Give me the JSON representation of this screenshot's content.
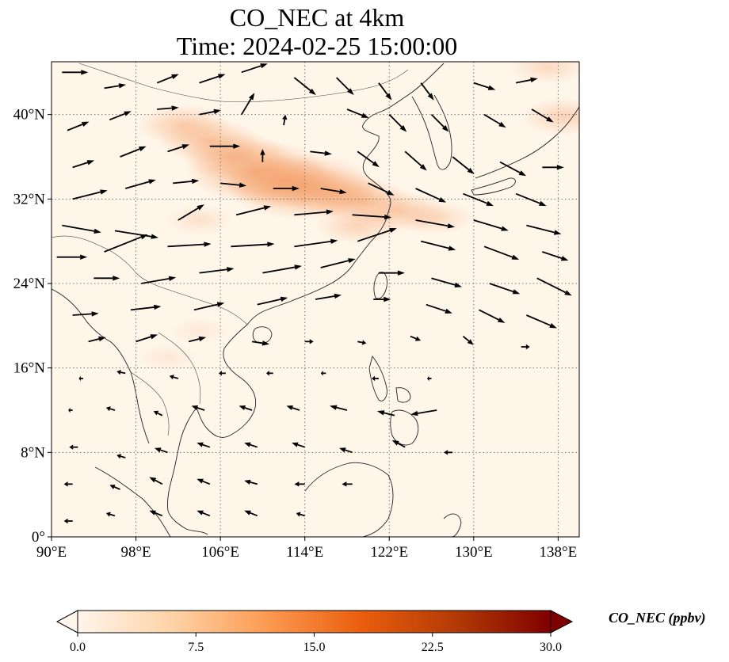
{
  "title": {
    "line1": "CO_NEC at 4km",
    "line2": "Time: 2024-02-25 15:00:00"
  },
  "map": {
    "lon_range": [
      90,
      140
    ],
    "lat_range": [
      0,
      45
    ],
    "lon_ticks": [
      {
        "value": 90,
        "label": "90°E"
      },
      {
        "value": 98,
        "label": "98°E"
      },
      {
        "value": 106,
        "label": "106°E"
      },
      {
        "value": 114,
        "label": "114°E"
      },
      {
        "value": 122,
        "label": "122°E"
      },
      {
        "value": 130,
        "label": "130°E"
      },
      {
        "value": 138,
        "label": "138°E"
      }
    ],
    "lat_ticks": [
      {
        "value": 0,
        "label": "0°"
      },
      {
        "value": 8,
        "label": "8°N"
      },
      {
        "value": 16,
        "label": "16°N"
      },
      {
        "value": 24,
        "label": "24°N"
      },
      {
        "value": 32,
        "label": "32°N"
      },
      {
        "value": 40,
        "label": "40°N"
      }
    ],
    "gridlines": true,
    "plume_color": "#f4a06a",
    "background_color": "#fff6ea",
    "plume_points": [
      {
        "lon": 102.5,
        "lat": 39.0,
        "ppbv": 6
      },
      {
        "lon": 105.0,
        "lat": 37.5,
        "ppbv": 7
      },
      {
        "lon": 107.5,
        "lat": 36.0,
        "ppbv": 8
      },
      {
        "lon": 109.5,
        "lat": 34.6,
        "ppbv": 12
      },
      {
        "lon": 112.0,
        "lat": 33.6,
        "ppbv": 9
      },
      {
        "lon": 113.7,
        "lat": 33.2,
        "ppbv": 13
      },
      {
        "lon": 116.5,
        "lat": 32.6,
        "ppbv": 8
      },
      {
        "lon": 119.5,
        "lat": 31.8,
        "ppbv": 7
      },
      {
        "lon": 123.0,
        "lat": 30.8,
        "ppbv": 6
      },
      {
        "lon": 126.5,
        "lat": 30.2,
        "ppbv": 4
      },
      {
        "lon": 119.0,
        "lat": 29.5,
        "ppbv": 5
      },
      {
        "lon": 104.0,
        "lat": 30.0,
        "ppbv": 3
      },
      {
        "lon": 138.5,
        "lat": 39.8,
        "ppbv": 5
      },
      {
        "lon": 137.0,
        "lat": 44.5,
        "ppbv": 4
      },
      {
        "lon": 104.0,
        "lat": 19.5,
        "ppbv": 2
      },
      {
        "lon": 101.0,
        "lat": 17.0,
        "ppbv": 2
      }
    ],
    "wind_vectors": [
      {
        "lon": 91.0,
        "lat": 44.0,
        "u": 3.0,
        "v": 0.0
      },
      {
        "lon": 95.0,
        "lat": 42.5,
        "u": 2.5,
        "v": 0.4
      },
      {
        "lon": 100.0,
        "lat": 43.0,
        "u": 2.5,
        "v": 1.0
      },
      {
        "lon": 104.0,
        "lat": 43.0,
        "u": 3.0,
        "v": 1.0
      },
      {
        "lon": 108.0,
        "lat": 44.0,
        "u": 3.0,
        "v": 1.0
      },
      {
        "lon": 113.0,
        "lat": 43.5,
        "u": 2.5,
        "v": -2.0
      },
      {
        "lon": 117.0,
        "lat": 43.5,
        "u": 2.0,
        "v": -2.0
      },
      {
        "lon": 121.0,
        "lat": 43.0,
        "u": 1.5,
        "v": -2.0
      },
      {
        "lon": 125.0,
        "lat": 43.0,
        "u": 1.5,
        "v": -2.0
      },
      {
        "lon": 130.0,
        "lat": 43.0,
        "u": 2.5,
        "v": -0.8
      },
      {
        "lon": 134.0,
        "lat": 43.0,
        "u": 2.5,
        "v": 0.5
      },
      {
        "lon": 91.5,
        "lat": 38.5,
        "u": 2.5,
        "v": 1.0
      },
      {
        "lon": 95.5,
        "lat": 39.5,
        "u": 2.5,
        "v": 1.0
      },
      {
        "lon": 100.0,
        "lat": 40.5,
        "u": 2.5,
        "v": 0.2
      },
      {
        "lon": 104.0,
        "lat": 40.0,
        "u": 2.5,
        "v": 0.5
      },
      {
        "lon": 108.0,
        "lat": 40.0,
        "u": 1.5,
        "v": 2.5
      },
      {
        "lon": 112.0,
        "lat": 39.0,
        "u": 0.2,
        "v": 1.2
      },
      {
        "lon": 118.0,
        "lat": 40.5,
        "u": 2.5,
        "v": -1.0
      },
      {
        "lon": 122.0,
        "lat": 40.0,
        "u": 2.0,
        "v": -2.0
      },
      {
        "lon": 126.0,
        "lat": 40.0,
        "u": 2.0,
        "v": -2.0
      },
      {
        "lon": 131.0,
        "lat": 40.0,
        "u": 2.5,
        "v": -1.5
      },
      {
        "lon": 135.5,
        "lat": 40.5,
        "u": 2.5,
        "v": -1.5
      },
      {
        "lon": 92.0,
        "lat": 35.0,
        "u": 2.5,
        "v": 0.8
      },
      {
        "lon": 96.5,
        "lat": 36.0,
        "u": 3.0,
        "v": 1.2
      },
      {
        "lon": 101.0,
        "lat": 36.5,
        "u": 2.5,
        "v": 0.8
      },
      {
        "lon": 105.0,
        "lat": 37.0,
        "u": 3.5,
        "v": 0.0
      },
      {
        "lon": 110.0,
        "lat": 35.5,
        "u": 0.0,
        "v": 1.5
      },
      {
        "lon": 114.5,
        "lat": 36.5,
        "u": 2.5,
        "v": -0.3
      },
      {
        "lon": 119.0,
        "lat": 36.5,
        "u": 2.5,
        "v": -1.8
      },
      {
        "lon": 123.5,
        "lat": 36.5,
        "u": 2.5,
        "v": -2.2
      },
      {
        "lon": 128.0,
        "lat": 36.0,
        "u": 2.5,
        "v": -2.0
      },
      {
        "lon": 132.5,
        "lat": 35.5,
        "u": 3.0,
        "v": -1.6
      },
      {
        "lon": 136.5,
        "lat": 35.0,
        "u": 2.5,
        "v": 0.0
      },
      {
        "lon": 92.0,
        "lat": 32.0,
        "u": 4.0,
        "v": 1.0
      },
      {
        "lon": 97.0,
        "lat": 33.0,
        "u": 3.5,
        "v": 1.0
      },
      {
        "lon": 101.5,
        "lat": 33.5,
        "u": 3.0,
        "v": 0.3
      },
      {
        "lon": 106.0,
        "lat": 33.5,
        "u": 3.0,
        "v": -0.3
      },
      {
        "lon": 111.0,
        "lat": 33.0,
        "u": 3.0,
        "v": 0.0
      },
      {
        "lon": 115.5,
        "lat": 33.0,
        "u": 3.0,
        "v": -0.5
      },
      {
        "lon": 120.0,
        "lat": 33.5,
        "u": 3.0,
        "v": -1.4
      },
      {
        "lon": 124.5,
        "lat": 33.0,
        "u": 3.5,
        "v": -1.6
      },
      {
        "lon": 129.0,
        "lat": 32.5,
        "u": 3.5,
        "v": -1.4
      },
      {
        "lon": 134.0,
        "lat": 32.5,
        "u": 3.5,
        "v": -1.4
      },
      {
        "lon": 91.0,
        "lat": 29.5,
        "u": 4.5,
        "v": -0.8
      },
      {
        "lon": 96.0,
        "lat": 29.0,
        "u": 5.0,
        "v": -0.8
      },
      {
        "lon": 102.0,
        "lat": 30.0,
        "u": 3.0,
        "v": 1.8
      },
      {
        "lon": 107.5,
        "lat": 30.5,
        "u": 4.0,
        "v": 1.0
      },
      {
        "lon": 113.0,
        "lat": 30.5,
        "u": 4.5,
        "v": 0.4
      },
      {
        "lon": 118.5,
        "lat": 30.5,
        "u": 4.5,
        "v": -0.3
      },
      {
        "lon": 124.5,
        "lat": 30.0,
        "u": 4.5,
        "v": -0.8
      },
      {
        "lon": 130.0,
        "lat": 30.0,
        "u": 4.0,
        "v": -1.2
      },
      {
        "lon": 135.0,
        "lat": 29.5,
        "u": 4.0,
        "v": -1.0
      },
      {
        "lon": 90.5,
        "lat": 26.5,
        "u": 3.5,
        "v": 0.0
      },
      {
        "lon": 95.0,
        "lat": 27.0,
        "u": 5.0,
        "v": 2.0
      },
      {
        "lon": 101.0,
        "lat": 27.5,
        "u": 5.0,
        "v": 0.3
      },
      {
        "lon": 107.0,
        "lat": 27.5,
        "u": 5.0,
        "v": 0.3
      },
      {
        "lon": 113.0,
        "lat": 27.5,
        "u": 5.0,
        "v": 0.7
      },
      {
        "lon": 119.0,
        "lat": 28.0,
        "u": 4.5,
        "v": 1.5
      },
      {
        "lon": 125.0,
        "lat": 28.0,
        "u": 4.0,
        "v": -1.0
      },
      {
        "lon": 131.0,
        "lat": 27.5,
        "u": 4.0,
        "v": -1.5
      },
      {
        "lon": 136.5,
        "lat": 27.0,
        "u": 3.0,
        "v": -1.0
      },
      {
        "lon": 94.0,
        "lat": 24.5,
        "u": 3.0,
        "v": 0.0
      },
      {
        "lon": 98.5,
        "lat": 24.0,
        "u": 4.0,
        "v": 0.7
      },
      {
        "lon": 104.0,
        "lat": 25.0,
        "u": 4.0,
        "v": 0.5
      },
      {
        "lon": 110.0,
        "lat": 25.0,
        "u": 4.5,
        "v": 0.8
      },
      {
        "lon": 115.5,
        "lat": 25.5,
        "u": 4.0,
        "v": 1.0
      },
      {
        "lon": 121.0,
        "lat": 25.0,
        "u": 3.0,
        "v": 0.0
      },
      {
        "lon": 126.0,
        "lat": 24.5,
        "u": 3.5,
        "v": -1.0
      },
      {
        "lon": 131.5,
        "lat": 24.0,
        "u": 3.5,
        "v": -1.2
      },
      {
        "lon": 136.0,
        "lat": 24.5,
        "u": 4.0,
        "v": -2.0
      },
      {
        "lon": 92.0,
        "lat": 21.0,
        "u": 3.0,
        "v": 0.2
      },
      {
        "lon": 97.5,
        "lat": 21.5,
        "u": 3.5,
        "v": 0.4
      },
      {
        "lon": 103.5,
        "lat": 21.5,
        "u": 3.5,
        "v": 0.8
      },
      {
        "lon": 109.5,
        "lat": 22.0,
        "u": 3.5,
        "v": 0.8
      },
      {
        "lon": 115.0,
        "lat": 22.5,
        "u": 3.0,
        "v": 0.5
      },
      {
        "lon": 120.5,
        "lat": 22.5,
        "u": 2.0,
        "v": 0.0
      },
      {
        "lon": 125.5,
        "lat": 22.0,
        "u": 3.0,
        "v": -1.0
      },
      {
        "lon": 130.5,
        "lat": 21.5,
        "u": 3.0,
        "v": -1.5
      },
      {
        "lon": 135.0,
        "lat": 21.0,
        "u": 3.5,
        "v": -1.5
      },
      {
        "lon": 93.5,
        "lat": 18.5,
        "u": 2.0,
        "v": 0.5
      },
      {
        "lon": 98.0,
        "lat": 18.5,
        "u": 2.5,
        "v": 0.8
      },
      {
        "lon": 103.0,
        "lat": 18.5,
        "u": 2.0,
        "v": 0.5
      },
      {
        "lon": 109.0,
        "lat": 18.5,
        "u": 2.0,
        "v": -0.3
      },
      {
        "lon": 114.0,
        "lat": 18.5,
        "u": 1.0,
        "v": 0.0
      },
      {
        "lon": 119.0,
        "lat": 18.5,
        "u": 1.0,
        "v": -0.2
      },
      {
        "lon": 124.0,
        "lat": 19.0,
        "u": 1.2,
        "v": -0.5
      },
      {
        "lon": 129.0,
        "lat": 19.0,
        "u": 1.2,
        "v": -1.0
      },
      {
        "lon": 134.5,
        "lat": 18.0,
        "u": 1.0,
        "v": 0.0
      },
      {
        "lon": 93.0,
        "lat": 15.0,
        "u": -0.5,
        "v": 0.0
      },
      {
        "lon": 97.0,
        "lat": 15.5,
        "u": -1.0,
        "v": 0.2
      },
      {
        "lon": 102.0,
        "lat": 15.0,
        "u": -1.0,
        "v": 0.3
      },
      {
        "lon": 106.5,
        "lat": 15.5,
        "u": -0.8,
        "v": 0.0
      },
      {
        "lon": 111.0,
        "lat": 15.5,
        "u": -0.8,
        "v": 0.0
      },
      {
        "lon": 116.0,
        "lat": 15.5,
        "u": -0.6,
        "v": 0.0
      },
      {
        "lon": 121.0,
        "lat": 15.0,
        "u": -0.8,
        "v": 0.0
      },
      {
        "lon": 126.0,
        "lat": 15.0,
        "u": -0.5,
        "v": 0.0
      },
      {
        "lon": 92.0,
        "lat": 12.0,
        "u": -0.5,
        "v": 0.0
      },
      {
        "lon": 96.0,
        "lat": 12.0,
        "u": -1.0,
        "v": 0.3
      },
      {
        "lon": 100.5,
        "lat": 11.5,
        "u": -1.0,
        "v": 0.5
      },
      {
        "lon": 104.5,
        "lat": 12.0,
        "u": -1.5,
        "v": 0.5
      },
      {
        "lon": 109.0,
        "lat": 12.0,
        "u": -1.5,
        "v": 0.5
      },
      {
        "lon": 113.5,
        "lat": 12.0,
        "u": -1.5,
        "v": 0.5
      },
      {
        "lon": 118.0,
        "lat": 12.0,
        "u": -2.0,
        "v": 0.5
      },
      {
        "lon": 122.5,
        "lat": 11.5,
        "u": -2.0,
        "v": 0.5
      },
      {
        "lon": 126.5,
        "lat": 12.0,
        "u": -3.0,
        "v": -0.5
      },
      {
        "lon": 92.5,
        "lat": 8.5,
        "u": -1.0,
        "v": 0.0
      },
      {
        "lon": 97.0,
        "lat": 7.5,
        "u": -1.0,
        "v": 0.3
      },
      {
        "lon": 101.0,
        "lat": 8.0,
        "u": -1.5,
        "v": 0.5
      },
      {
        "lon": 105.0,
        "lat": 8.5,
        "u": -1.5,
        "v": 0.5
      },
      {
        "lon": 109.5,
        "lat": 8.5,
        "u": -1.5,
        "v": 0.5
      },
      {
        "lon": 114.0,
        "lat": 8.5,
        "u": -1.5,
        "v": 0.5
      },
      {
        "lon": 118.5,
        "lat": 8.0,
        "u": -1.5,
        "v": 0.5
      },
      {
        "lon": 123.5,
        "lat": 8.5,
        "u": -1.5,
        "v": 0.8
      },
      {
        "lon": 128.0,
        "lat": 8.0,
        "u": -1.0,
        "v": 0.0
      },
      {
        "lon": 92.0,
        "lat": 5.0,
        "u": -1.0,
        "v": 0.0
      },
      {
        "lon": 96.5,
        "lat": 4.5,
        "u": -1.2,
        "v": 0.5
      },
      {
        "lon": 100.5,
        "lat": 5.0,
        "u": -1.5,
        "v": 0.8
      },
      {
        "lon": 105.0,
        "lat": 5.0,
        "u": -1.5,
        "v": 0.6
      },
      {
        "lon": 109.5,
        "lat": 5.0,
        "u": -1.5,
        "v": 0.4
      },
      {
        "lon": 114.0,
        "lat": 5.0,
        "u": -1.2,
        "v": 0.0
      },
      {
        "lon": 118.5,
        "lat": 5.0,
        "u": -1.2,
        "v": 0.0
      },
      {
        "lon": 92.0,
        "lat": 1.5,
        "u": -1.0,
        "v": 0.0
      },
      {
        "lon": 96.0,
        "lat": 2.0,
        "u": -1.0,
        "v": 0.3
      },
      {
        "lon": 100.5,
        "lat": 2.0,
        "u": -1.5,
        "v": 0.6
      },
      {
        "lon": 105.0,
        "lat": 2.0,
        "u": -1.5,
        "v": 0.6
      },
      {
        "lon": 109.5,
        "lat": 2.0,
        "u": -1.5,
        "v": 0.6
      },
      {
        "lon": 114.0,
        "lat": 2.0,
        "u": -1.0,
        "v": 0.3
      }
    ]
  },
  "colorbar": {
    "title": "CO_NEC (ppbv)",
    "min": 0.0,
    "max": 30.0,
    "extend": "both",
    "ticks": [
      {
        "value": 0.0,
        "label": "0.0"
      },
      {
        "value": 7.5,
        "label": "7.5"
      },
      {
        "value": 15.0,
        "label": "15.0"
      },
      {
        "value": 22.5,
        "label": "22.5"
      },
      {
        "value": 30.0,
        "label": "30.0"
      }
    ],
    "colormap": [
      "#fff5eb",
      "#fdd3a7",
      "#fd9a52",
      "#e95e0d",
      "#b33a06",
      "#7f0000"
    ]
  }
}
